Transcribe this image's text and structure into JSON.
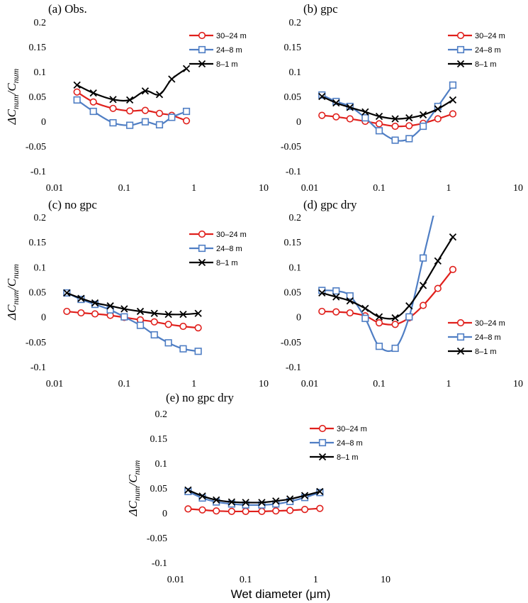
{
  "chart_data": [
    {
      "type": "line",
      "title": "(a) Obs.",
      "ylabel_main": "ΔC",
      "ylabel_sub": "num",
      "ylabel_div": "/C",
      "xlabel": "",
      "log_x": true,
      "xlim": [
        0.01,
        10
      ],
      "ylim": [
        -0.1,
        0.2
      ],
      "x_ticks": [
        "0.01",
        "0.1",
        "1",
        "10"
      ],
      "y_ticks": [
        "-0.1",
        "-0.05",
        "0",
        "0.05",
        "0.1",
        "0.15",
        "0.2"
      ],
      "legend_position": "top-right",
      "series": [
        {
          "name": "30–24 m",
          "color": "#e0201c",
          "marker": "circle",
          "x": [
            0.021,
            0.036,
            0.069,
            0.12,
            0.2,
            0.32,
            0.48,
            0.78
          ],
          "y": [
            0.059,
            0.039,
            0.026,
            0.021,
            0.022,
            0.016,
            0.012,
            0.001
          ]
        },
        {
          "name": "24–8 m",
          "color": "#4f7ec4",
          "marker": "square",
          "x": [
            0.021,
            0.036,
            0.069,
            0.12,
            0.2,
            0.32,
            0.48,
            0.78
          ],
          "y": [
            0.043,
            0.02,
            -0.003,
            -0.008,
            -0.001,
            -0.007,
            0.008,
            0.02
          ]
        },
        {
          "name": "8–1 m",
          "color": "#000000",
          "marker": "x",
          "x": [
            0.021,
            0.036,
            0.069,
            0.12,
            0.2,
            0.32,
            0.48,
            0.78
          ],
          "y": [
            0.073,
            0.057,
            0.044,
            0.043,
            0.061,
            0.054,
            0.085,
            0.106
          ]
        }
      ]
    },
    {
      "type": "line",
      "title": "(b) gpc",
      "ylabel_main": "",
      "ylabel_sub": "",
      "ylabel_div": "",
      "xlabel": "",
      "log_x": true,
      "xlim": [
        0.01,
        10
      ],
      "ylim": [
        -0.1,
        0.2
      ],
      "x_ticks": [
        "0.01",
        "0.1",
        "1",
        "10"
      ],
      "y_ticks": [
        "-0.1",
        "-0.05",
        "0",
        "0.05",
        "0.1",
        "0.15",
        "0.2"
      ],
      "legend_position": "top-right",
      "series": [
        {
          "name": "30–24 m",
          "color": "#e0201c",
          "marker": "circle",
          "x": [
            0.015,
            0.024,
            0.038,
            0.063,
            0.1,
            0.17,
            0.27,
            0.43,
            0.7,
            1.15
          ],
          "y": [
            0.012,
            0.009,
            0.005,
            0.0,
            -0.005,
            -0.01,
            -0.009,
            -0.004,
            0.005,
            0.015
          ]
        },
        {
          "name": "24–8 m",
          "color": "#4f7ec4",
          "marker": "square",
          "x": [
            0.015,
            0.024,
            0.038,
            0.063,
            0.1,
            0.17,
            0.27,
            0.43,
            0.7,
            1.15
          ],
          "y": [
            0.053,
            0.04,
            0.03,
            0.007,
            -0.019,
            -0.038,
            -0.035,
            -0.01,
            0.03,
            0.073
          ]
        },
        {
          "name": "8–1 m",
          "color": "#000000",
          "marker": "x",
          "x": [
            0.015,
            0.024,
            0.038,
            0.063,
            0.1,
            0.17,
            0.27,
            0.43,
            0.7,
            1.15
          ],
          "y": [
            0.05,
            0.037,
            0.028,
            0.019,
            0.01,
            0.005,
            0.007,
            0.013,
            0.025,
            0.043
          ]
        }
      ]
    },
    {
      "type": "line",
      "title": "(c) no gpc",
      "ylabel_main": "ΔC",
      "ylabel_sub": "num",
      "ylabel_div": "/C",
      "xlabel": "",
      "log_x": true,
      "xlim": [
        0.01,
        10
      ],
      "ylim": [
        -0.1,
        0.2
      ],
      "x_ticks": [
        "0.01",
        "0.1",
        "1",
        "10"
      ],
      "y_ticks": [
        "-0.1",
        "-0.05",
        "0",
        "0.05",
        "0.1",
        "0.15",
        "0.2"
      ],
      "legend_position": "top-right",
      "series": [
        {
          "name": "30–24 m",
          "color": "#e0201c",
          "marker": "circle",
          "x": [
            0.015,
            0.024,
            0.038,
            0.063,
            0.1,
            0.17,
            0.27,
            0.43,
            0.7,
            1.15
          ],
          "y": [
            0.011,
            0.008,
            0.006,
            0.003,
            -0.001,
            -0.006,
            -0.01,
            -0.015,
            -0.019,
            -0.022
          ]
        },
        {
          "name": "24–8 m",
          "color": "#4f7ec4",
          "marker": "square",
          "x": [
            0.015,
            0.024,
            0.038,
            0.063,
            0.1,
            0.17,
            0.27,
            0.43,
            0.7,
            1.15
          ],
          "y": [
            0.048,
            0.035,
            0.025,
            0.014,
            0.0,
            -0.017,
            -0.036,
            -0.052,
            -0.064,
            -0.069
          ]
        },
        {
          "name": "8–1 m",
          "color": "#000000",
          "marker": "x",
          "x": [
            0.015,
            0.024,
            0.038,
            0.063,
            0.1,
            0.17,
            0.27,
            0.43,
            0.7,
            1.15
          ],
          "y": [
            0.048,
            0.037,
            0.028,
            0.022,
            0.016,
            0.011,
            0.007,
            0.005,
            0.005,
            0.007
          ]
        }
      ]
    },
    {
      "type": "line",
      "title": "(d) gpc dry",
      "ylabel_main": "",
      "ylabel_sub": "",
      "ylabel_div": "",
      "xlabel": "",
      "log_x": true,
      "xlim": [
        0.01,
        10
      ],
      "ylim": [
        -0.1,
        0.2
      ],
      "x_ticks": [
        "0.01",
        "0.1",
        "1",
        "10"
      ],
      "y_ticks": [
        "-0.1",
        "-0.05",
        "0",
        "0.05",
        "0.1",
        "0.15",
        "0.2"
      ],
      "legend_position": "bottom-right",
      "series": [
        {
          "name": "30–24 m",
          "color": "#e0201c",
          "marker": "circle",
          "x": [
            0.015,
            0.024,
            0.038,
            0.063,
            0.1,
            0.17,
            0.27,
            0.43,
            0.7,
            1.15
          ],
          "y": [
            0.011,
            0.01,
            0.008,
            0.002,
            -0.012,
            -0.015,
            -0.002,
            0.023,
            0.057,
            0.095
          ]
        },
        {
          "name": "24–8 m",
          "color": "#4f7ec4",
          "marker": "square",
          "x": [
            0.015,
            0.024,
            0.038,
            0.063,
            0.1,
            0.17,
            0.27,
            0.43,
            0.62
          ],
          "y": [
            0.053,
            0.052,
            0.042,
            -0.003,
            -0.059,
            -0.063,
            0.0,
            0.118,
            0.21
          ]
        },
        {
          "name": "8–1 m",
          "color": "#000000",
          "marker": "x",
          "x": [
            0.015,
            0.024,
            0.038,
            0.063,
            0.1,
            0.17,
            0.27,
            0.43,
            0.7,
            1.15
          ],
          "y": [
            0.048,
            0.04,
            0.032,
            0.017,
            0.0,
            -0.002,
            0.022,
            0.063,
            0.112,
            0.16
          ]
        }
      ]
    },
    {
      "type": "line",
      "title": "(e) no gpc dry",
      "ylabel_main": "ΔC",
      "ylabel_sub": "num",
      "ylabel_div": "/C",
      "xlabel": "Wet diameter (μm)",
      "log_x": true,
      "xlim": [
        0.01,
        10
      ],
      "ylim": [
        -0.1,
        0.2
      ],
      "x_ticks": [
        "0.01",
        "0.1",
        "1",
        "10"
      ],
      "y_ticks": [
        "-0.1",
        "-0.05",
        "0",
        "0.05",
        "0.1",
        "0.15",
        "0.2"
      ],
      "legend_position": "top-right",
      "series": [
        {
          "name": "30–24 m",
          "color": "#e0201c",
          "marker": "circle",
          "x": [
            0.015,
            0.024,
            0.038,
            0.063,
            0.1,
            0.17,
            0.27,
            0.43,
            0.7,
            1.15
          ],
          "y": [
            0.008,
            0.006,
            0.004,
            0.003,
            0.003,
            0.003,
            0.004,
            0.005,
            0.007,
            0.009
          ]
        },
        {
          "name": "24–8 m",
          "color": "#4f7ec4",
          "marker": "square",
          "x": [
            0.015,
            0.024,
            0.038,
            0.063,
            0.1,
            0.17,
            0.27,
            0.43,
            0.7,
            1.15
          ],
          "y": [
            0.043,
            0.03,
            0.022,
            0.018,
            0.016,
            0.016,
            0.018,
            0.023,
            0.031,
            0.041
          ]
        },
        {
          "name": "8–1 m",
          "color": "#000000",
          "marker": "x",
          "x": [
            0.015,
            0.024,
            0.038,
            0.063,
            0.1,
            0.17,
            0.27,
            0.43,
            0.7,
            1.15
          ],
          "y": [
            0.046,
            0.034,
            0.026,
            0.022,
            0.021,
            0.021,
            0.024,
            0.028,
            0.035,
            0.043
          ]
        }
      ]
    }
  ]
}
